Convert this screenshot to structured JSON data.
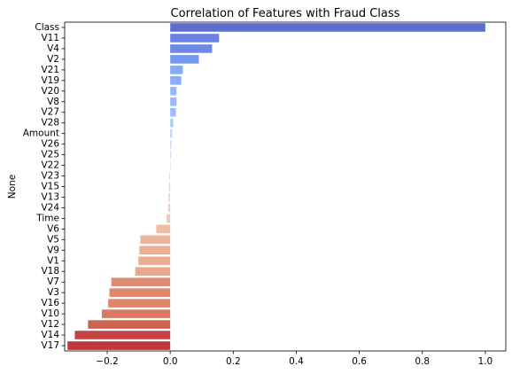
{
  "chart_data": {
    "type": "bar",
    "orientation": "horizontal",
    "title": "Correlation of Features with Fraud Class",
    "xlabel": "",
    "ylabel": "None",
    "xlim": [
      -0.335,
      1.065
    ],
    "xticks": [
      -0.2,
      0.0,
      0.2,
      0.4,
      0.6,
      0.8,
      1.0
    ],
    "xtick_labels": [
      "−0.2",
      "0.0",
      "0.2",
      "0.4",
      "0.6",
      "0.8",
      "1.0"
    ],
    "grid": false,
    "colormap": "coolwarm",
    "categories": [
      "Class",
      "V11",
      "V4",
      "V2",
      "V21",
      "V19",
      "V20",
      "V8",
      "V27",
      "V28",
      "Amount",
      "V26",
      "V25",
      "V22",
      "V23",
      "V15",
      "V13",
      "V24",
      "Time",
      "V6",
      "V5",
      "V9",
      "V1",
      "V18",
      "V7",
      "V3",
      "V16",
      "V10",
      "V12",
      "V14",
      "V17"
    ],
    "values": [
      1.0,
      0.155,
      0.133,
      0.091,
      0.04,
      0.035,
      0.02,
      0.02,
      0.018,
      0.01,
      0.006,
      0.004,
      0.003,
      0.001,
      -0.003,
      -0.004,
      -0.005,
      -0.007,
      -0.012,
      -0.044,
      -0.095,
      -0.098,
      -0.101,
      -0.111,
      -0.187,
      -0.193,
      -0.197,
      -0.217,
      -0.261,
      -0.303,
      -0.326
    ],
    "colors": [
      "#5b6fd0",
      "#6b84e4",
      "#6e88e6",
      "#7699f0",
      "#86a9f8",
      "#8aadf9",
      "#96b7fc",
      "#99b9fc",
      "#9cbcfd",
      "#b3c9f7",
      "#c1d3f4",
      "#cad8f2",
      "#d1dbf0",
      "#dddcdc",
      "#e5dad2",
      "#e7d7ce",
      "#e8d5cb",
      "#e9d3c8",
      "#eacbbd",
      "#efbda5",
      "#ecb49b",
      "#ebb198",
      "#eaae95",
      "#e8a88e",
      "#df8b72",
      "#de8870",
      "#dd856d",
      "#d97962",
      "#d0624f",
      "#c24444",
      "#bb3a3e"
    ]
  }
}
